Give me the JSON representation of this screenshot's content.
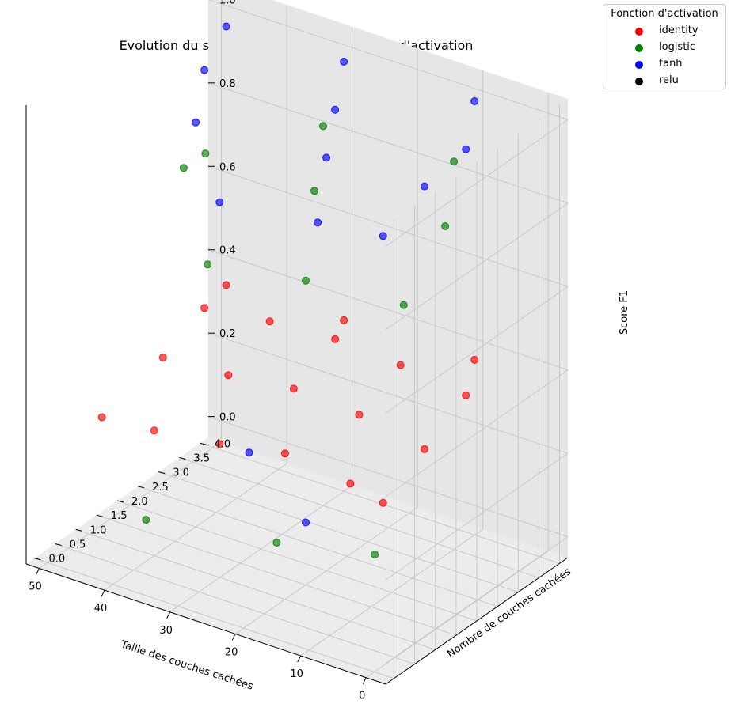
{
  "chart_data": {
    "type": "scatter",
    "projection": "3d",
    "title": "Evolution du score du MLP selon la fonction d'activation",
    "xlabel": "Taille des couches cachées",
    "ylabel": "Nombre de couches cachées",
    "zlabel": "Score F1",
    "x_ticks": [
      "0",
      "10",
      "20",
      "30",
      "40",
      "50"
    ],
    "y_ticks": [
      "0.0",
      "0.5",
      "1.0",
      "1.5",
      "2.0",
      "2.5",
      "3.0",
      "3.5",
      "4.0"
    ],
    "z_ticks": [
      "0.0",
      "0.2",
      "0.4",
      "0.6",
      "0.8",
      "1.0"
    ],
    "xlim": [
      -3,
      52
    ],
    "ylim": [
      -0.2,
      4.2
    ],
    "zlim": [
      -0.05,
      1.05
    ],
    "grid": true,
    "legend": {
      "title": "Fonction d'activation",
      "placement": "top-right",
      "entries": [
        {
          "label": "identity",
          "color": "#ff0000"
        },
        {
          "label": "logistic",
          "color": "#008000"
        },
        {
          "label": "tanh",
          "color": "#0000ff"
        },
        {
          "label": "relu",
          "color": "#000000"
        }
      ]
    },
    "series": [
      {
        "name": "identity",
        "color": "#ff0000",
        "points": [
          {
            "x": 5,
            "y": 1,
            "z": 0.26
          },
          {
            "x": 10,
            "y": 1,
            "z": 0.28
          },
          {
            "x": 20,
            "y": 1,
            "z": 0.3
          },
          {
            "x": 30,
            "y": 1,
            "z": 0.27
          },
          {
            "x": 40,
            "y": 1,
            "z": 0.25
          },
          {
            "x": 48,
            "y": 1,
            "z": 0.24
          },
          {
            "x": 5,
            "y": 2,
            "z": 0.32
          },
          {
            "x": 15,
            "y": 2,
            "z": 0.35
          },
          {
            "x": 25,
            "y": 2,
            "z": 0.36
          },
          {
            "x": 35,
            "y": 2,
            "z": 0.34
          },
          {
            "x": 45,
            "y": 2,
            "z": 0.33
          },
          {
            "x": 5,
            "y": 3,
            "z": 0.38
          },
          {
            "x": 15,
            "y": 3,
            "z": 0.4
          },
          {
            "x": 25,
            "y": 3,
            "z": 0.41
          },
          {
            "x": 35,
            "y": 3,
            "z": 0.4
          },
          {
            "x": 45,
            "y": 3,
            "z": 0.38
          },
          {
            "x": 10,
            "y": 4,
            "z": 0.37
          },
          {
            "x": 30,
            "y": 4,
            "z": 0.36
          },
          {
            "x": 48,
            "y": 4,
            "z": 0.35
          }
        ]
      },
      {
        "name": "logistic",
        "color": "#008000",
        "points": [
          {
            "x": 5,
            "y": 0.8,
            "z": 0.15
          },
          {
            "x": 20,
            "y": 0.8,
            "z": 0.1
          },
          {
            "x": 40,
            "y": 0.8,
            "z": 0.05
          },
          {
            "x": 5,
            "y": 1.5,
            "z": 0.7
          },
          {
            "x": 20,
            "y": 1.5,
            "z": 0.68
          },
          {
            "x": 35,
            "y": 1.5,
            "z": 0.64
          },
          {
            "x": 5,
            "y": 2.5,
            "z": 0.82
          },
          {
            "x": 25,
            "y": 2.5,
            "z": 0.8
          },
          {
            "x": 45,
            "y": 2.5,
            "z": 0.75
          },
          {
            "x": 10,
            "y": 3.5,
            "z": 0.88
          },
          {
            "x": 30,
            "y": 3.5,
            "z": 0.86
          },
          {
            "x": 48,
            "y": 3.5,
            "z": 0.7
          }
        ]
      },
      {
        "name": "tanh",
        "color": "#0000ff",
        "points": [
          {
            "x": 5,
            "y": 1,
            "z": 0.9
          },
          {
            "x": 15,
            "y": 1,
            "z": 0.88
          },
          {
            "x": 30,
            "y": 1,
            "z": 0.85
          },
          {
            "x": 5,
            "y": 2,
            "z": 0.95
          },
          {
            "x": 20,
            "y": 2,
            "z": 0.94
          },
          {
            "x": 40,
            "y": 2,
            "z": 0.92
          },
          {
            "x": 5,
            "y": 3,
            "z": 0.97
          },
          {
            "x": 25,
            "y": 3,
            "z": 0.96
          },
          {
            "x": 45,
            "y": 3,
            "z": 0.95
          },
          {
            "x": 10,
            "y": 4,
            "z": 0.99
          },
          {
            "x": 30,
            "y": 4,
            "z": 0.98
          },
          {
            "x": 48,
            "y": 4,
            "z": 0.97
          },
          {
            "x": 20,
            "y": 1.5,
            "z": 0.1
          },
          {
            "x": 35,
            "y": 2.5,
            "z": 0.12
          }
        ]
      },
      {
        "name": "relu",
        "color": "#000000",
        "points": []
      }
    ]
  }
}
